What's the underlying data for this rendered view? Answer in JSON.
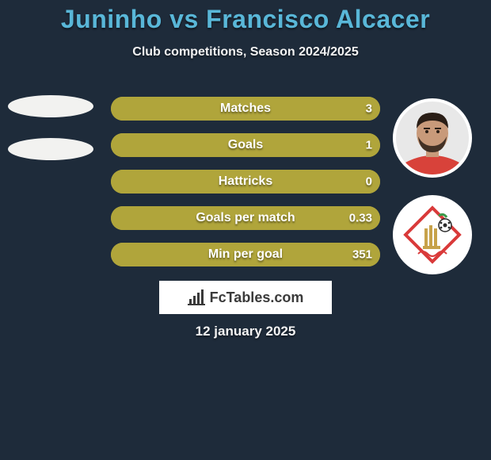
{
  "background_color": "#1e2b3a",
  "title": {
    "text": "Juninho vs Francisco Alcacer",
    "color": "#59b7d8",
    "fontsize": 32,
    "fontweight": 800
  },
  "subtitle": {
    "text": "Club competitions, Season 2024/2025",
    "color": "#f2f2f2",
    "fontsize": 16,
    "fontweight": 700
  },
  "stats": {
    "bar_bg_color": "#b0a53b",
    "bar_fill_color": "#b0a53b",
    "label_color": "#ffffff",
    "value_color": "#ffffff",
    "label_fontsize": 16,
    "value_fontsize": 15,
    "rows": [
      {
        "label": "Matches",
        "left": "",
        "right": "3",
        "fill_pct": 100
      },
      {
        "label": "Goals",
        "left": "",
        "right": "1",
        "fill_pct": 100
      },
      {
        "label": "Hattricks",
        "left": "",
        "right": "0",
        "fill_pct": 100
      },
      {
        "label": "Goals per match",
        "left": "",
        "right": "0.33",
        "fill_pct": 100
      },
      {
        "label": "Min per goal",
        "left": "",
        "right": "351",
        "fill_pct": 100
      }
    ]
  },
  "left_placeholders": {
    "ellipse_color": "#f2f2f0",
    "count": 2
  },
  "right_player": {
    "avatar_bg": "#e8e8e8",
    "skin_color": "#c89a7a",
    "hair_color": "#2a1e16",
    "shirt_color": "#d8423a"
  },
  "right_team": {
    "logo_bg": "#ffffff",
    "accent_red": "#d93a3a",
    "accent_gold": "#c7a24a",
    "accent_green": "#3b9a4a"
  },
  "watermark": {
    "text": "FcTables.com",
    "bg": "#ffffff",
    "text_color": "#3a3a3a",
    "icon_color": "#3a3a3a"
  },
  "date": {
    "text": "12 january 2025",
    "color": "#f2f2f2",
    "fontsize": 17
  }
}
